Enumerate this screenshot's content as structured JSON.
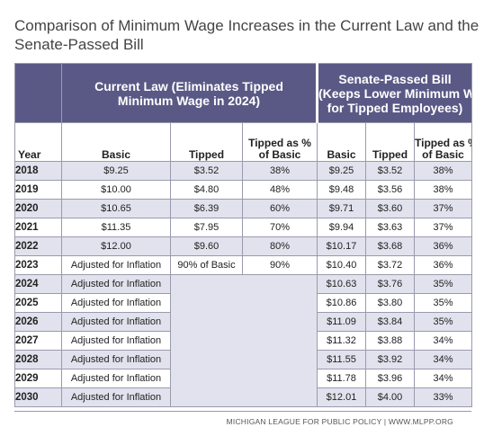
{
  "title": {
    "line1": "Comparison of Minimum Wage Increases in the Current Law and the",
    "line2": "Senate-Passed  Bill"
  },
  "groups": {
    "current_line1": "Current Law (Eliminates Tipped",
    "current_line2": "Minimum Wage in 2024)",
    "senate_line1": "Senate-Passed Bill",
    "senate_line2": "(Keeps Lower Minimum Wage",
    "senate_line3": "for Tipped Employees)"
  },
  "columns": {
    "year": "Year",
    "basic": "Basic",
    "tipped": "Tipped",
    "pct_line1": "Tipped as %",
    "pct_line2": "of Basic"
  },
  "rows": [
    {
      "year": "2018",
      "cur_basic": "$9.25",
      "cur_tipped": "$3.52",
      "cur_pct": "38%",
      "sen_basic": "$9.25",
      "sen_tipped": "$3.52",
      "sen_pct": "38%"
    },
    {
      "year": "2019",
      "cur_basic": "$10.00",
      "cur_tipped": "$4.80",
      "cur_pct": "48%",
      "sen_basic": "$9.48",
      "sen_tipped": "$3.56",
      "sen_pct": "38%"
    },
    {
      "year": "2020",
      "cur_basic": "$10.65",
      "cur_tipped": "$6.39",
      "cur_pct": "60%",
      "sen_basic": "$9.71",
      "sen_tipped": "$3.60",
      "sen_pct": "37%"
    },
    {
      "year": "2021",
      "cur_basic": "$11.35",
      "cur_tipped": "$7.95",
      "cur_pct": "70%",
      "sen_basic": "$9.94",
      "sen_tipped": "$3.63",
      "sen_pct": "37%"
    },
    {
      "year": "2022",
      "cur_basic": "$12.00",
      "cur_tipped": "$9.60",
      "cur_pct": "80%",
      "sen_basic": "$10.17",
      "sen_tipped": "$3.68",
      "sen_pct": "36%"
    },
    {
      "year": "2023",
      "cur_basic": "Adjusted for Inflation",
      "cur_tipped": "90% of Basic",
      "cur_pct": "90%",
      "sen_basic": "$10.40",
      "sen_tipped": "$3.72",
      "sen_pct": "36%"
    },
    {
      "year": "2024",
      "cur_basic": "Adjusted for Inflation",
      "sen_basic": "$10.63",
      "sen_tipped": "$3.76",
      "sen_pct": "35%"
    },
    {
      "year": "2025",
      "cur_basic": "Adjusted for Inflation",
      "sen_basic": "$10.86",
      "sen_tipped": "$3.80",
      "sen_pct": "35%"
    },
    {
      "year": "2026",
      "cur_basic": "Adjusted for Inflation",
      "sen_basic": "$11.09",
      "sen_tipped": "$3.84",
      "sen_pct": "35%"
    },
    {
      "year": "2027",
      "cur_basic": "Adjusted for Inflation",
      "sen_basic": "$11.32",
      "sen_tipped": "$3.88",
      "sen_pct": "34%"
    },
    {
      "year": "2028",
      "cur_basic": "Adjusted for Inflation",
      "sen_basic": "$11.55",
      "sen_tipped": "$3.92",
      "sen_pct": "34%"
    },
    {
      "year": "2029",
      "cur_basic": "Adjusted for Inflation",
      "sen_basic": "$11.78",
      "sen_tipped": "$3.96",
      "sen_pct": "34%"
    },
    {
      "year": "2030",
      "cur_basic": "Adjusted for Inflation",
      "sen_basic": "$12.01",
      "sen_tipped": "$4.00",
      "sen_pct": "33%"
    }
  ],
  "footer": "MICHIGAN LEAGUE FOR PUBLIC POLICY | WWW.MLPP.ORG",
  "colors": {
    "header_bg": "#5a5986",
    "shade_row": "#e2e2ee",
    "border": "#9a9aae"
  }
}
